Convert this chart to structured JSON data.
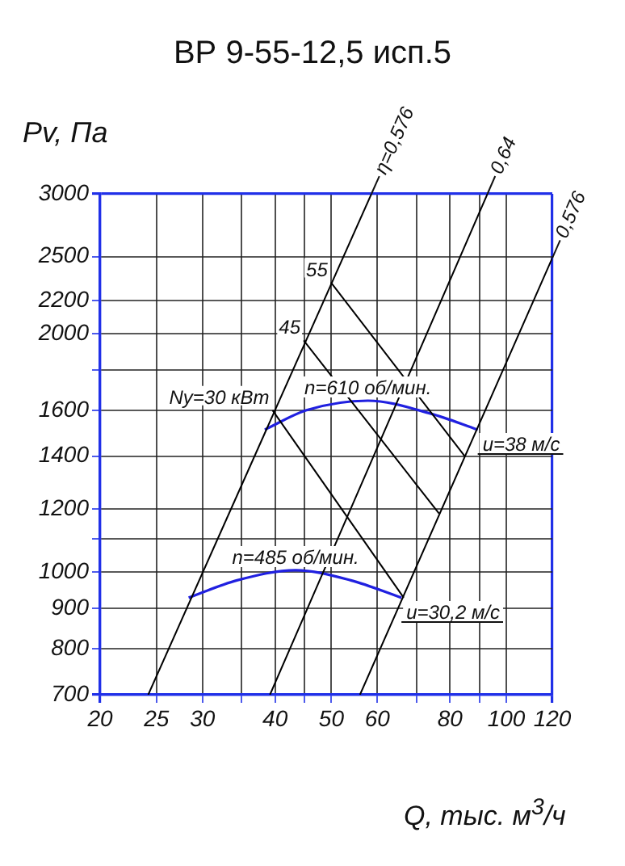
{
  "chart_data": {
    "type": "line",
    "title": "ВР 9-55-12,5 исп.5",
    "xlabel": "Q, тыс. м$^{3}$/ч",
    "ylabel": "Pv, Па",
    "log": "xy",
    "grid": true,
    "legend": false,
    "marker": "none",
    "line_style": "solid",
    "xlim": [
      20,
      120
    ],
    "xticks": [
      20,
      25,
      30,
      {
        "value": 35,
        "label": null
      },
      40,
      {
        "value": 45,
        "label": null
      },
      50,
      60,
      {
        "value": 70,
        "label": null
      },
      80,
      {
        "value": 90,
        "label": null
      },
      100,
      120
    ],
    "ylim": [
      700,
      3000
    ],
    "yticks": [
      700,
      800,
      900,
      1000,
      {
        "value": 1100,
        "label": null
      },
      1200,
      1400,
      1600,
      {
        "value": 1800,
        "label": null
      },
      2000,
      2200,
      2500,
      3000
    ],
    "series": [
      {
        "name": "η=0,576",
        "color": "#000000",
        "x": [
          24.2,
          58.6
        ],
        "values": [
          700,
          3000
        ]
      },
      {
        "name": "0,64",
        "color": "#000000",
        "x": [
          39.2,
          92.8
        ],
        "values": [
          700,
          3000
        ]
      },
      {
        "name": "0,576",
        "color": "#000000",
        "x": [
          56,
          120
        ],
        "values": [
          700,
          2490
        ]
      },
      {
        "name": "55",
        "color": "#000000",
        "x": [
          49.9,
          84.8
        ],
        "values": [
          2320,
          1400
        ]
      },
      {
        "name": "45",
        "color": "#000000",
        "x": [
          44.8,
          76.6
        ],
        "values": [
          1960,
          1185
        ]
      },
      {
        "name": "Ny=30 кВт",
        "color": "#000000",
        "x": [
          39.6,
          66.6
        ],
        "values": [
          1600,
          928
        ]
      },
      {
        "name": "n=610 об/мин.",
        "color": "#2020e0",
        "x": [
          38.4,
          45.3,
          57.8,
          74.2,
          89.3
        ],
        "values": [
          1512,
          1600,
          1645,
          1584,
          1512
        ]
      },
      {
        "name": "n=485 об/мин.",
        "color": "#2020e0",
        "x": [
          28.4,
          34.4,
          43.4,
          54,
          66
        ],
        "values": [
          928,
          976,
          1005,
          976,
          928
        ]
      }
    ],
    "annotations": [
      {
        "text": "u=38 м/с",
        "x": 89.3,
        "y": 1512
      },
      {
        "text": "u=30,2 м/с",
        "x": 66,
        "y": 928
      }
    ]
  }
}
